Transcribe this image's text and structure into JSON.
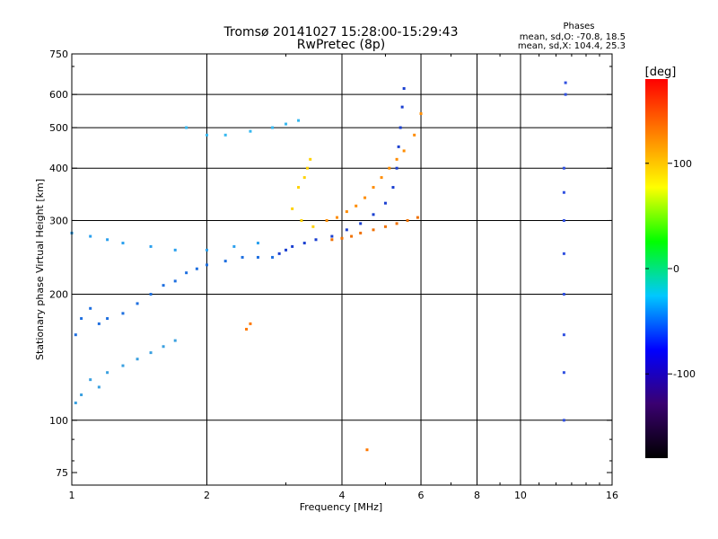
{
  "chart_data": {
    "type": "scatter",
    "title": "Tromsø 20141027 15:28:00-15:29:43",
    "subtitle": "RwPretec (8p)",
    "xlabel": "Frequency [MHz]",
    "ylabel": "Stationary phase Virtual Height [km]",
    "x_scale": "log",
    "y_scale": "log",
    "xlim": [
      1,
      16
    ],
    "ylim": [
      70,
      750
    ],
    "x_ticks": [
      1,
      2,
      4,
      6,
      8,
      10,
      16
    ],
    "x_tick_labels": [
      "1",
      "2",
      "4",
      "6",
      "8",
      "10",
      "16"
    ],
    "y_ticks": [
      75,
      100,
      200,
      300,
      400,
      500,
      600,
      750
    ],
    "y_tick_labels": [
      "75",
      "100",
      "200",
      "300",
      "400",
      "500",
      "600",
      "750"
    ],
    "x_gridlines": [
      2,
      4,
      6,
      8,
      10
    ],
    "y_gridlines": [
      100,
      200,
      300,
      400,
      500,
      600
    ],
    "phase_legend": {
      "title": "Phases",
      "line_o": "mean, sd,O: -70.8, 18.5",
      "line_x": "mean, sd,X: 104.4, 25.3"
    },
    "colorbar": {
      "label": "[deg]",
      "range": [
        -180,
        180
      ],
      "ticks": [
        100,
        0,
        -100
      ],
      "tick_labels": [
        "100",
        "0",
        "-100"
      ],
      "colors": [
        "#000000",
        "#3a0070",
        "#0000ff",
        "#00c8ff",
        "#00ff00",
        "#ffff00",
        "#ff8000",
        "#ff0000"
      ]
    },
    "series": [
      {
        "color": "#1e6fe0",
        "points": [
          [
            1.02,
            160
          ],
          [
            1.05,
            175
          ],
          [
            1.1,
            185
          ],
          [
            1.15,
            170
          ],
          [
            1.2,
            175
          ],
          [
            1.3,
            180
          ],
          [
            1.4,
            190
          ],
          [
            1.5,
            200
          ],
          [
            1.6,
            210
          ],
          [
            1.7,
            215
          ],
          [
            1.8,
            225
          ],
          [
            1.9,
            230
          ],
          [
            2.0,
            235
          ],
          [
            2.2,
            240
          ],
          [
            2.4,
            245
          ],
          [
            2.6,
            245
          ],
          [
            2.8,
            245
          ]
        ]
      },
      {
        "color": "#1a3fd0",
        "points": [
          [
            2.9,
            250
          ],
          [
            3.0,
            255
          ],
          [
            3.1,
            260
          ],
          [
            3.3,
            265
          ],
          [
            3.5,
            270
          ],
          [
            3.8,
            275
          ],
          [
            4.1,
            285
          ],
          [
            4.4,
            295
          ],
          [
            4.7,
            310
          ],
          [
            5.0,
            330
          ],
          [
            5.2,
            360
          ],
          [
            5.3,
            400
          ],
          [
            5.35,
            450
          ],
          [
            5.4,
            500
          ],
          [
            5.45,
            560
          ],
          [
            5.5,
            620
          ]
        ]
      },
      {
        "color": "#f07000",
        "points": [
          [
            3.8,
            270
          ],
          [
            4.0,
            272
          ],
          [
            4.2,
            275
          ],
          [
            4.4,
            280
          ],
          [
            4.7,
            285
          ],
          [
            5.0,
            290
          ],
          [
            5.3,
            295
          ],
          [
            5.6,
            300
          ],
          [
            5.9,
            305
          ]
        ]
      },
      {
        "color": "#ff8c00",
        "points": [
          [
            3.7,
            300
          ],
          [
            3.9,
            305
          ],
          [
            4.1,
            315
          ],
          [
            4.3,
            325
          ],
          [
            4.5,
            340
          ],
          [
            4.7,
            360
          ],
          [
            4.9,
            380
          ],
          [
            5.1,
            400
          ],
          [
            5.3,
            420
          ],
          [
            5.5,
            440
          ],
          [
            5.8,
            480
          ],
          [
            6.0,
            540
          ]
        ]
      },
      {
        "color": "#ffd200",
        "points": [
          [
            3.3,
            380
          ],
          [
            3.35,
            400
          ],
          [
            3.4,
            420
          ],
          [
            3.2,
            360
          ],
          [
            3.1,
            320
          ],
          [
            3.25,
            300
          ],
          [
            3.45,
            290
          ]
        ]
      },
      {
        "color": "#2aa0ee",
        "points": [
          [
            1.0,
            280
          ],
          [
            1.1,
            275
          ],
          [
            1.2,
            270
          ],
          [
            1.3,
            265
          ],
          [
            1.5,
            260
          ],
          [
            1.7,
            255
          ],
          [
            2.0,
            255
          ],
          [
            2.3,
            260
          ],
          [
            2.6,
            265
          ]
        ]
      },
      {
        "color": "#35b8f0",
        "points": [
          [
            1.8,
            500
          ],
          [
            2.0,
            480
          ],
          [
            2.2,
            480
          ],
          [
            2.5,
            490
          ],
          [
            2.8,
            500
          ],
          [
            3.0,
            510
          ],
          [
            3.2,
            520
          ]
        ]
      },
      {
        "color": "#3050e0",
        "points": [
          [
            12.5,
            100
          ],
          [
            12.5,
            130
          ],
          [
            12.5,
            160
          ],
          [
            12.5,
            200
          ],
          [
            12.5,
            250
          ],
          [
            12.5,
            300
          ],
          [
            12.5,
            350
          ],
          [
            12.5,
            400
          ],
          [
            12.6,
            600
          ],
          [
            12.6,
            640
          ]
        ]
      },
      {
        "color": "#3aa0e0",
        "points": [
          [
            1.02,
            110
          ],
          [
            1.05,
            115
          ],
          [
            1.1,
            125
          ],
          [
            1.15,
            120
          ],
          [
            1.2,
            130
          ],
          [
            1.3,
            135
          ],
          [
            1.4,
            140
          ],
          [
            1.5,
            145
          ],
          [
            1.6,
            150
          ],
          [
            1.7,
            155
          ]
        ]
      },
      {
        "color": "#ff7800",
        "points": [
          [
            2.45,
            165
          ],
          [
            2.5,
            170
          ],
          [
            4.55,
            85
          ]
        ]
      }
    ]
  }
}
